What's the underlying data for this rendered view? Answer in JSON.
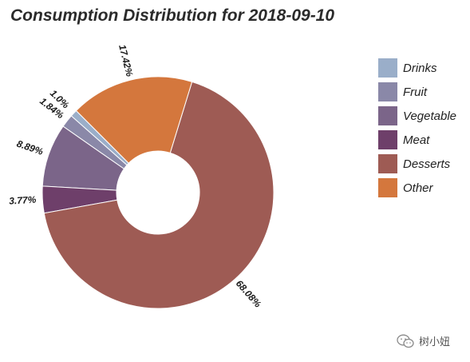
{
  "chart_data": {
    "type": "pie",
    "variant": "donut",
    "title": "Consumption Distribution for 2018-09-10",
    "slices": [
      {
        "label": "Drinks",
        "value": 1.0,
        "display": "1.0%",
        "color": "#9aaec9"
      },
      {
        "label": "Fruit",
        "value": 1.84,
        "display": "1.84%",
        "color": "#8a88a8"
      },
      {
        "label": "Vegetable",
        "value": 8.89,
        "display": "8.89%",
        "color": "#7b6589"
      },
      {
        "label": "Meat",
        "value": 3.77,
        "display": "3.77%",
        "color": "#6e3f6a"
      },
      {
        "label": "Desserts",
        "value": 68.08,
        "display": "68.08%",
        "color": "#9e5b54"
      },
      {
        "label": "Other",
        "value": 17.42,
        "display": "17.42%",
        "color": "#d4773d"
      }
    ],
    "legend_position": "right",
    "start_angle_deg": 135,
    "direction": "counterclockwise"
  },
  "watermark": {
    "text": "树小妞",
    "icon": "wechat-icon"
  }
}
